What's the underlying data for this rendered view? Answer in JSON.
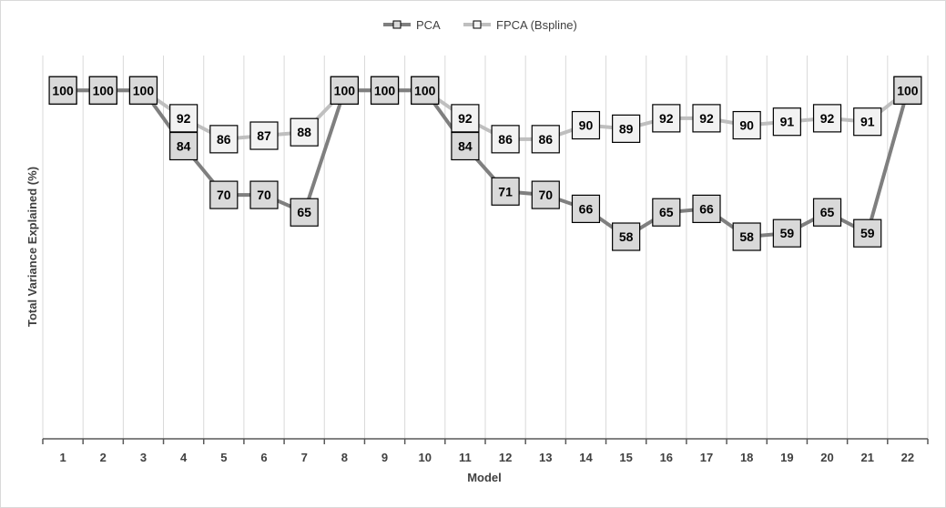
{
  "chart_data": {
    "type": "line",
    "categories": [
      "1",
      "2",
      "3",
      "4",
      "5",
      "6",
      "7",
      "8",
      "9",
      "10",
      "11",
      "12",
      "13",
      "14",
      "15",
      "16",
      "17",
      "18",
      "19",
      "20",
      "21",
      "22"
    ],
    "series": [
      {
        "name": "PCA",
        "color": "#7f7f7f",
        "marker_fill": "#d9d9d9",
        "values": [
          100,
          100,
          100,
          84,
          70,
          70,
          65,
          100,
          100,
          100,
          84,
          71,
          70,
          66,
          58,
          65,
          66,
          58,
          59,
          65,
          59,
          100
        ]
      },
      {
        "name": "FPCA (Bspline)",
        "color": "#bfbfbf",
        "marker_fill": "#f2f2f2",
        "values": [
          100,
          100,
          100,
          92,
          86,
          87,
          88,
          100,
          100,
          100,
          92,
          86,
          86,
          90,
          89,
          92,
          92,
          90,
          91,
          92,
          91,
          100
        ]
      }
    ],
    "xlabel": "Model",
    "ylabel": "Total Variance Explained (%)",
    "ylim": [
      0,
      110
    ],
    "grid": "vertical",
    "legend": "top-center",
    "data_labels": true
  }
}
